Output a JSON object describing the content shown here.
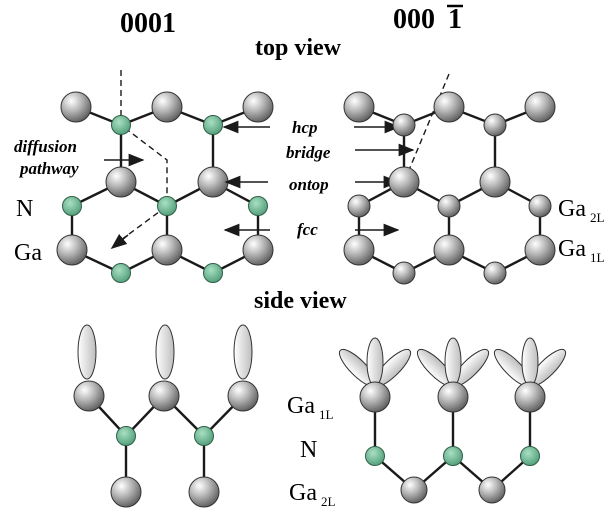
{
  "headings": {
    "surface_left": "0001",
    "surface_right": "000",
    "surface_right_bar": "1",
    "top_view": "top view",
    "side_view": "side view"
  },
  "sites": {
    "hcp": "hcp",
    "bridge": "bridge",
    "ontop": "ontop",
    "fcc": "fcc",
    "diffusion_line1": "diffusion",
    "diffusion_line2": "pathway"
  },
  "atom_labels": {
    "N": "N",
    "Ga": "Ga",
    "Ga2L_base": "Ga",
    "Ga2L_sub": "2L",
    "Ga1L_base": "Ga",
    "Ga1L_sub": "1L",
    "side_Ga1L_base": "Ga",
    "side_Ga1L_sub": "1L",
    "side_N": "N",
    "side_Ga2L_base": "Ga",
    "side_Ga2L_sub": "2L"
  },
  "colors": {
    "ga_atom": "#a6a6a6",
    "n_atom": "#6fbf98",
    "orbital": "#d9d9d9",
    "bond": "#1a1a1a"
  }
}
